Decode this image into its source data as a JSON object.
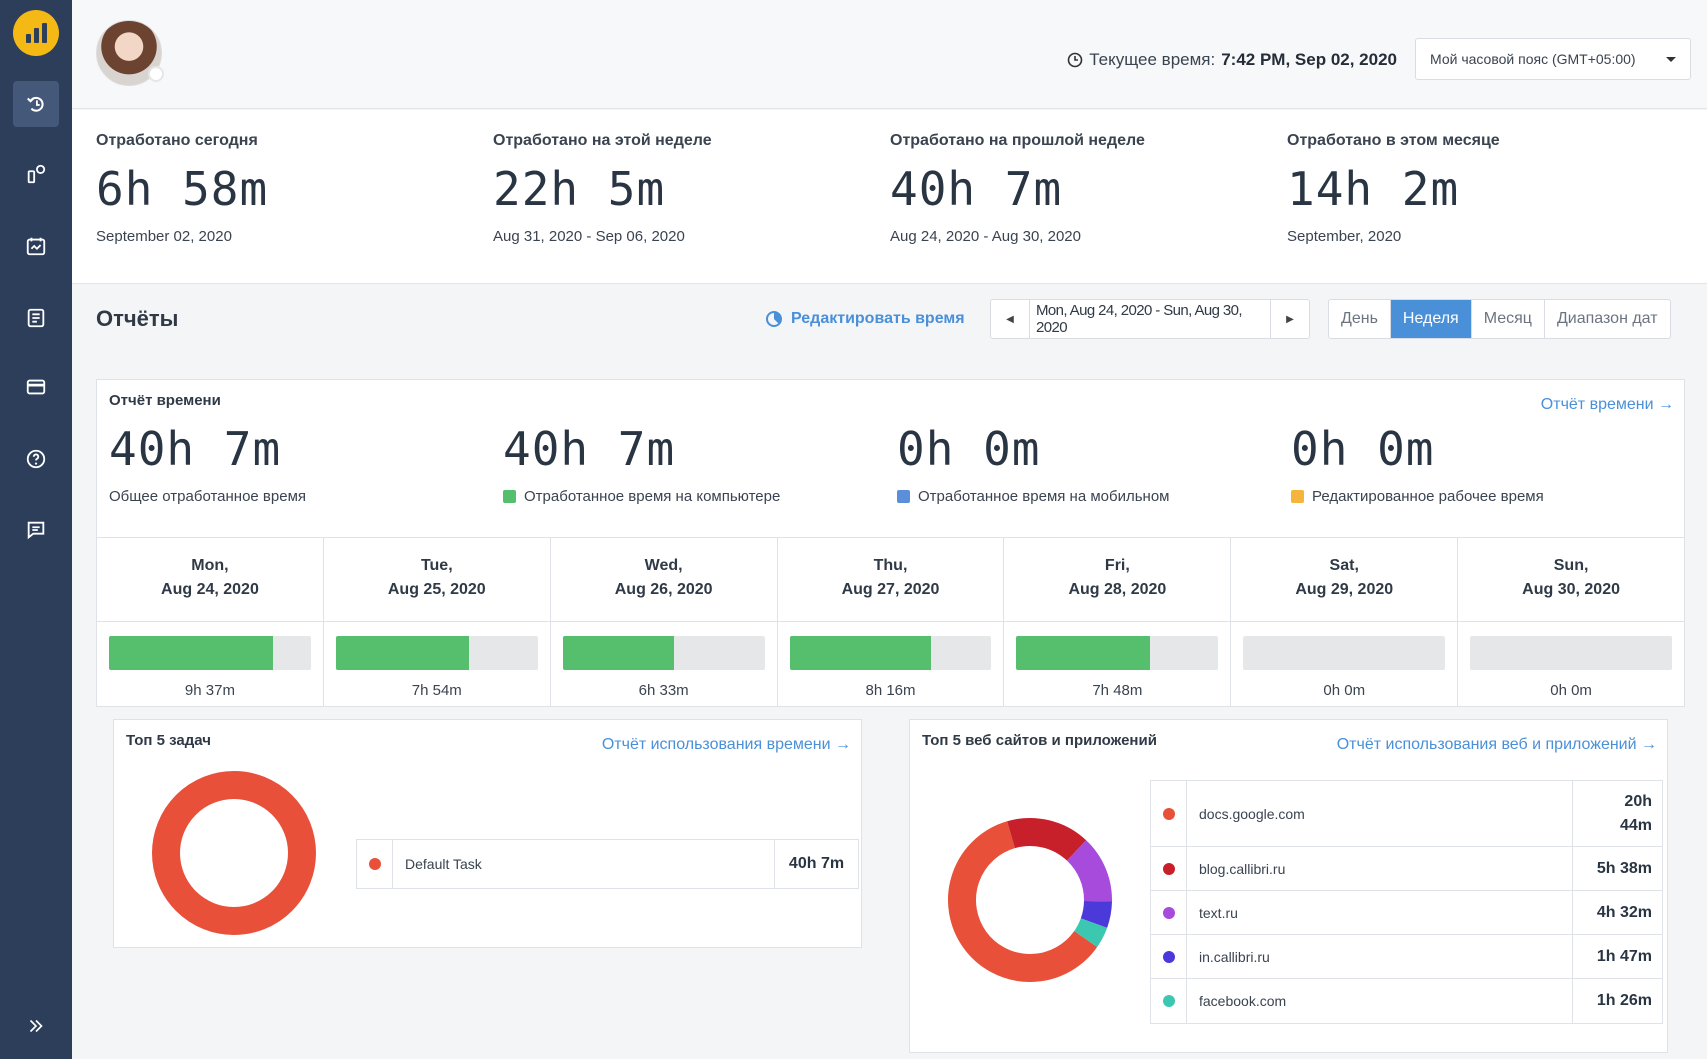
{
  "header": {
    "current_time_label": "Текущее время:",
    "current_time_value": "7:42 PM, Sep 02, 2020",
    "timezone_select": "Мой часовой пояс (GMT+05:00)"
  },
  "summary": [
    {
      "label": "Отработано сегодня",
      "value": "6h 58m",
      "sub": "September 02, 2020"
    },
    {
      "label": "Отработано на этой неделе",
      "value": "22h 5m",
      "sub": "Aug 31, 2020 - Sep 06, 2020"
    },
    {
      "label": "Отработано на прошлой неделе",
      "value": "40h 7m",
      "sub": "Aug 24, 2020 - Aug 30, 2020"
    },
    {
      "label": "Отработано в этом месяце",
      "value": "14h 2m",
      "sub": "September, 2020"
    }
  ],
  "reports": {
    "title": "Отчёты",
    "edit_time": "Редактировать время",
    "date_range": "Mon, Aug 24, 2020 - Sun, Aug 30, 2020",
    "tabs": [
      "День",
      "Неделя",
      "Месяц",
      "Диапазон дат"
    ],
    "active_tab": "Неделя"
  },
  "time_report": {
    "title": "Отчёт времени",
    "link": "Отчёт времени →",
    "stats": [
      {
        "value": "40h 7m",
        "desc": "Общее отработанное время",
        "color": ""
      },
      {
        "value": "40h 7m",
        "desc": "Отработанное время на компьютере",
        "color": "#55bf6e"
      },
      {
        "value": "0h 0m",
        "desc": "Отработанное время на мобильном",
        "color": "#5b8fd9"
      },
      {
        "value": "0h 0m",
        "desc": "Редактированное рабочее время",
        "color": "#f5b53d"
      }
    ],
    "days": [
      {
        "day": "Mon,",
        "date": "Aug 24, 2020",
        "hours": "9h 37m",
        "fill": 0.81
      },
      {
        "day": "Tue,",
        "date": "Aug 25, 2020",
        "hours": "7h 54m",
        "fill": 0.66
      },
      {
        "day": "Wed,",
        "date": "Aug 26, 2020",
        "hours": "6h 33m",
        "fill": 0.55
      },
      {
        "day": "Thu,",
        "date": "Aug 27, 2020",
        "hours": "8h 16m",
        "fill": 0.7
      },
      {
        "day": "Fri,",
        "date": "Aug 28, 2020",
        "hours": "7h 48m",
        "fill": 0.66
      },
      {
        "day": "Sat,",
        "date": "Aug 29, 2020",
        "hours": "0h 0m",
        "fill": 0
      },
      {
        "day": "Sun,",
        "date": "Aug 30, 2020",
        "hours": "0h 0m",
        "fill": 0
      }
    ]
  },
  "top_tasks": {
    "title": "Топ 5 задач",
    "link": "Отчёт использования времени →",
    "items": [
      {
        "name": "Default Task",
        "duration": "40h 7m",
        "color": "#e8503a",
        "share": 1.0
      }
    ]
  },
  "top_sites": {
    "title": "Топ 5 веб сайтов и приложений",
    "link": "Отчёт использования веб и приложений →",
    "items": [
      {
        "name": "docs.google.com",
        "duration": "20h 44m",
        "color": "#e8503a",
        "minutes": 1244
      },
      {
        "name": "blog.callibri.ru",
        "duration": "5h 38m",
        "color": "#c8202a",
        "minutes": 338
      },
      {
        "name": "text.ru",
        "duration": "4h 32m",
        "color": "#a64bdc",
        "minutes": 272
      },
      {
        "name": "in.callibri.ru",
        "duration": "1h 47m",
        "color": "#4b3ad9",
        "minutes": 107
      },
      {
        "name": "facebook.com",
        "duration": "1h 26m",
        "color": "#3cc8b0",
        "minutes": 86
      }
    ]
  },
  "colors": {
    "sidebar": "#2c3e5a",
    "accent": "#4a90d9",
    "logo": "#f5b916",
    "worked": "#55bf6e"
  },
  "icons": [
    "logo-icon",
    "timer-icon",
    "route-icon",
    "calendar-icon",
    "report-icon",
    "card-icon",
    "help-icon",
    "chat-icon",
    "expand-icon",
    "clock-icon",
    "pie-icon"
  ]
}
